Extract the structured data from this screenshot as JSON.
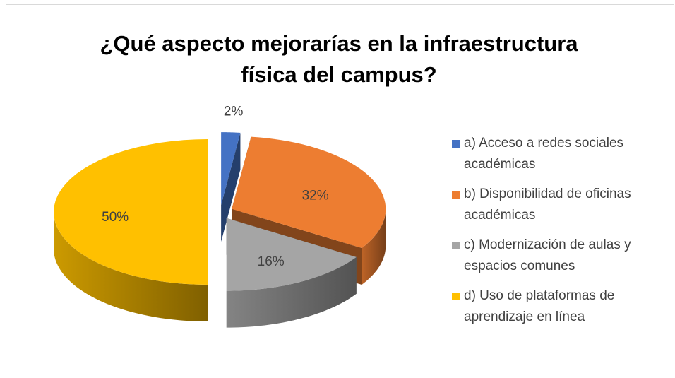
{
  "chart_data": {
    "type": "pie3d",
    "title": "¿Qué aspecto mejorarías en la infraestructura física del campus?",
    "categories": [
      "a) Acceso a redes sociales académicas",
      "b) Disponibilidad de oficinas académicas",
      "c) Modernización de aulas y espacios comunes",
      "d) Uso de plataformas de aprendizaje en línea"
    ],
    "values": [
      2,
      32,
      16,
      50
    ],
    "value_labels": [
      "2%",
      "32%",
      "16%",
      "50%"
    ],
    "colors": [
      "#4472c4",
      "#ed7d31",
      "#a5a5a5",
      "#ffc000"
    ],
    "legend": "right"
  }
}
